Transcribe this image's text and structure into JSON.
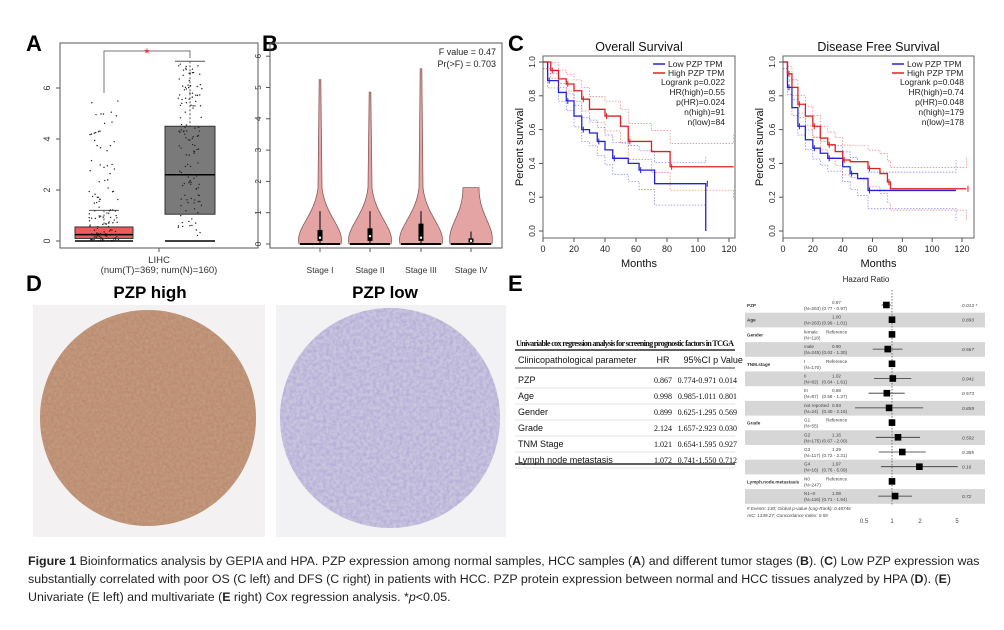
{
  "panel_labels": {
    "a": "A",
    "b": "B",
    "c": "C",
    "d": "D",
    "e": "E"
  },
  "chart_data": [
    {
      "id": "A",
      "type": "box",
      "yticks": [
        0,
        2,
        4,
        6
      ],
      "ylim": [
        0,
        7.5
      ],
      "xlabel": "LIHC",
      "xsublabel": "(num(T)=369; num(N)=160)",
      "significance": "*",
      "boxes": [
        {
          "group": "T",
          "color": "#f05a5a",
          "q1": 0.1,
          "median": 0.25,
          "q3": 0.55,
          "whisker_low": 0,
          "whisker_high": 1.2
        },
        {
          "group": "N",
          "color": "#7a7a7a",
          "q1": 1.05,
          "median": 2.6,
          "q3": 4.5,
          "whisker_low": 0,
          "whisker_high": 7.05
        }
      ]
    },
    {
      "id": "B",
      "type": "violin",
      "categories": [
        "Stage I",
        "Stage II",
        "Stage III",
        "Stage IV"
      ],
      "max": [
        5.25,
        4.85,
        5.6,
        1.8
      ],
      "median": [
        0.2,
        0.25,
        0.2,
        0.1
      ],
      "q1": [
        0.1,
        0.1,
        0.1,
        0.05
      ],
      "q3": [
        0.45,
        0.5,
        0.65,
        0.18
      ],
      "yticks": [
        0,
        1,
        2,
        3,
        4,
        5,
        6
      ],
      "ylim": [
        0,
        6.2
      ],
      "annotation": [
        "F value = 0.47",
        "Pr(>F) = 0.703"
      ],
      "color": "#e4a4a4"
    },
    {
      "id": "C-left",
      "type": "line",
      "title": "Overall Survival",
      "xlabel": "Months",
      "ylabel": "Percent survival",
      "xticks": [
        0,
        20,
        40,
        60,
        80,
        100,
        120
      ],
      "yticks": [
        0.0,
        0.2,
        0.4,
        0.6,
        0.8,
        1.0
      ],
      "legend": [
        "Low PZP TPM",
        "High PZP TPM"
      ],
      "stats": [
        "Logrank p=0.022",
        "HR(high)=0.55",
        "p(HR)=0.024",
        "n(high)=91",
        "n(low)=84"
      ],
      "series": [
        {
          "name": "Low PZP TPM",
          "color": "#2222dd",
          "points": [
            [
              0,
              1
            ],
            [
              3,
              0.89
            ],
            [
              10,
              0.82
            ],
            [
              15,
              0.77
            ],
            [
              20,
              0.68
            ],
            [
              25,
              0.6
            ],
            [
              30,
              0.58
            ],
            [
              35,
              0.53
            ],
            [
              40,
              0.48
            ],
            [
              45,
              0.43
            ],
            [
              55,
              0.4
            ],
            [
              62,
              0.36
            ],
            [
              72,
              0.28
            ],
            [
              105,
              0.28
            ],
            [
              105,
              0
            ]
          ]
        },
        {
          "name": "High PZP TPM",
          "color": "#e02020",
          "points": [
            [
              0,
              1
            ],
            [
              5,
              0.95
            ],
            [
              10,
              0.9
            ],
            [
              15,
              0.87
            ],
            [
              20,
              0.83
            ],
            [
              25,
              0.78
            ],
            [
              30,
              0.72
            ],
            [
              40,
              0.68
            ],
            [
              50,
              0.62
            ],
            [
              55,
              0.53
            ],
            [
              70,
              0.47
            ],
            [
              82,
              0.38
            ],
            [
              123,
              0.38
            ]
          ]
        }
      ]
    },
    {
      "id": "C-right",
      "type": "line",
      "title": "Disease Free Survival",
      "xlabel": "Months",
      "ylabel": "Percent survival",
      "xticks": [
        0,
        20,
        40,
        60,
        80,
        100,
        120
      ],
      "yticks": [
        0.0,
        0.2,
        0.4,
        0.6,
        0.8,
        1.0
      ],
      "legend": [
        "Low PZP TPM",
        "High PZP TPM"
      ],
      "stats": [
        "Logrank p=0.048",
        "HR(high)=0.74",
        "p(HR)=0.048",
        "n(high)=179",
        "n(low)=178"
      ],
      "series": [
        {
          "name": "Low PZP TPM",
          "color": "#2222dd",
          "points": [
            [
              0,
              1
            ],
            [
              3,
              0.85
            ],
            [
              6,
              0.73
            ],
            [
              10,
              0.62
            ],
            [
              15,
              0.54
            ],
            [
              20,
              0.49
            ],
            [
              25,
              0.46
            ],
            [
              30,
              0.43
            ],
            [
              40,
              0.38
            ],
            [
              45,
              0.34
            ],
            [
              50,
              0.31
            ],
            [
              57,
              0.24
            ],
            [
              116,
              0.24
            ]
          ]
        },
        {
          "name": "High PZP TPM",
          "color": "#e02020",
          "points": [
            [
              0,
              1
            ],
            [
              3,
              0.93
            ],
            [
              6,
              0.85
            ],
            [
              10,
              0.75
            ],
            [
              15,
              0.68
            ],
            [
              20,
              0.62
            ],
            [
              25,
              0.55
            ],
            [
              30,
              0.51
            ],
            [
              35,
              0.47
            ],
            [
              40,
              0.42
            ],
            [
              45,
              0.41
            ],
            [
              57,
              0.37
            ],
            [
              65,
              0.34
            ],
            [
              70,
              0.29
            ],
            [
              72,
              0.25
            ],
            [
              123,
              0.25
            ]
          ]
        }
      ]
    },
    {
      "id": "E-right",
      "type": "forest",
      "title": "Hazard Ratio",
      "xticks": [
        0.5,
        1,
        2,
        5
      ],
      "scale": "log",
      "rows": [
        {
          "var": "PZP",
          "group": "",
          "n": "(N=263)",
          "hr": "0.87",
          "ci": "(0.77 - 0.97)",
          "hrv": 0.87,
          "lo": 0.77,
          "hi": 0.97,
          "p": "0.013 *"
        },
        {
          "var": "Age",
          "group": "",
          "n": "(N=263)",
          "hr": "1.00",
          "ci": "(0.99 - 1.01)",
          "hrv": 1.0,
          "lo": 0.99,
          "hi": 1.01,
          "p": "0.893"
        },
        {
          "var": "Gender",
          "group": "female",
          "n": "(N=118)",
          "hr": "Reference",
          "ci": "",
          "hrv": 1,
          "lo": null,
          "hi": null,
          "p": ""
        },
        {
          "var": "",
          "group": "male",
          "n": "(N=245)",
          "hr": "0.90",
          "ci": "(0.62 - 1.30)",
          "hrv": 0.9,
          "lo": 0.62,
          "hi": 1.3,
          "p": "0.567"
        },
        {
          "var": "TNM.stage",
          "group": "I",
          "n": "(N=170)",
          "hr": "Reference",
          "ci": "",
          "hrv": 1,
          "lo": null,
          "hi": null,
          "p": ""
        },
        {
          "var": "",
          "group": "II",
          "n": "(N=82)",
          "hr": "1.02",
          "ci": "(0.64 - 1.61)",
          "hrv": 1.02,
          "lo": 0.64,
          "hi": 1.61,
          "p": "0.941"
        },
        {
          "var": "",
          "group": "III",
          "n": "(N=87)",
          "hr": "0.88",
          "ci": "(0.56 - 1.37)",
          "hrv": 0.88,
          "lo": 0.56,
          "hi": 1.37,
          "p": "0.573"
        },
        {
          "var": "",
          "group": "not reported",
          "n": "(N=24)",
          "hr": "0.93",
          "ci": "(0.40 - 2.16)",
          "hrv": 0.93,
          "lo": 0.4,
          "hi": 2.16,
          "p": "0.859"
        },
        {
          "var": "Grade",
          "group": "G1",
          "n": "(N=55)",
          "hr": "Reference",
          "ci": "",
          "hrv": 1,
          "lo": null,
          "hi": null,
          "p": ""
        },
        {
          "var": "",
          "group": "G2",
          "n": "(N=175)",
          "hr": "1.16",
          "ci": "(0.67 - 2.00)",
          "hrv": 1.16,
          "lo": 0.67,
          "hi": 2.0,
          "p": "0.592"
        },
        {
          "var": "",
          "group": "G3",
          "n": "(N=117)",
          "hr": "1.29",
          "ci": "(0.72 - 2.31)",
          "hrv": 1.29,
          "lo": 0.72,
          "hi": 2.31,
          "p": "0.385"
        },
        {
          "var": "",
          "group": "G4",
          "n": "(N=16)",
          "hr": "1.97",
          "ci": "(0.76 - 5.09)",
          "hrv": 1.97,
          "lo": 0.76,
          "hi": 5.09,
          "p": "0.16"
        },
        {
          "var": "Lymph.node.metastasis",
          "group": "N0",
          "n": "(N=247)",
          "hr": "Reference",
          "ci": "",
          "hrv": 1,
          "lo": null,
          "hi": null,
          "p": ""
        },
        {
          "var": "",
          "group": "N1~X",
          "n": "(N=116)",
          "hr": "1.08",
          "ci": "(0.71 - 1.64)",
          "hrv": 1.08,
          "lo": 0.71,
          "hi": 1.64,
          "p": "0.72"
        }
      ],
      "footer": [
        "# Events: 130; Global p-value (Log-Rank): 0.48746",
        "AIC: 1339.27; Concordance Index: 0.59"
      ]
    }
  ],
  "panel_d": {
    "left_title": "PZP high",
    "right_title": "PZP low",
    "left_stain": "#a06a4a",
    "right_stain": "#8f86b8"
  },
  "table": {
    "title": "Univariable cox regression analysis for screening prognostic factors in TCGA",
    "headers": [
      "Clinicopathological parameter",
      "HR",
      "95%CI",
      "p Value"
    ],
    "rows": [
      [
        "PZP",
        "0.867",
        "0.774-0.971",
        "0.014"
      ],
      [
        "Age",
        "0.998",
        "0.985-1.011",
        "0.801"
      ],
      [
        "Gender",
        "0.899",
        "0.625-1.295",
        "0.569"
      ],
      [
        "Grade",
        "2.124",
        "1.657-2.923",
        "0.030"
      ],
      [
        "TNM Stage",
        "1.021",
        "0.654-1.595",
        "0.927"
      ],
      [
        "Lymph node metastasis",
        "1.072",
        "0.741-1.550",
        "0.712"
      ]
    ]
  },
  "caption": {
    "label": "Figure 1",
    "parts": [
      " Bioinformatics analysis by GEPIA and HPA. PZP expression among normal samples, HCC samples (",
      "A",
      ") and different tumor stages (",
      "B",
      "). (",
      "C",
      ") Low PZP expression was substantially correlated with poor OS (C left) and DFS (C right) in patients with HCC. PZP protein expression between normal and HCC tissues analyzed by HPA (",
      "D",
      "). (",
      "E",
      ") Univariate (E left) and multivariate (",
      "E",
      " right) Cox regression analysis. *",
      "p",
      "<0.05."
    ]
  }
}
